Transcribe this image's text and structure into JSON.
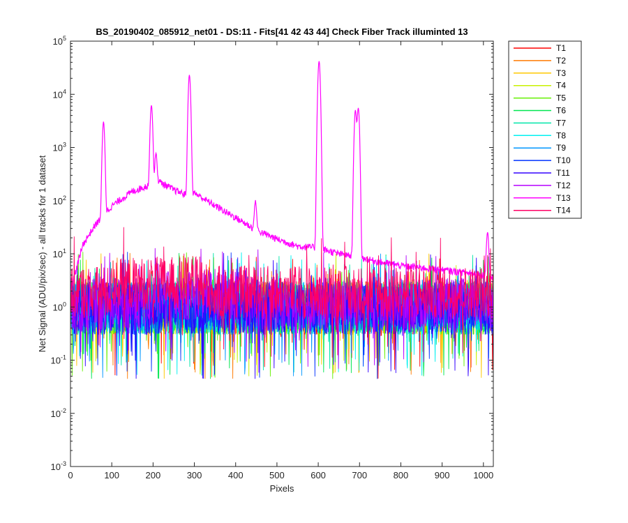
{
  "chart_data": {
    "type": "line",
    "title": "BS_20190402_085912_net01 - DS:11 - Fits[41  42  43  44]   Check Fiber     Track illuminted 13",
    "xlabel": "Pixels",
    "ylabel": "Net Signal (ADU/pix/sec) - all tracks for 1 dataset",
    "xlim": [
      0,
      1024
    ],
    "ylim": [
      0.001,
      100000
    ],
    "yscale": "log",
    "grid": false,
    "legend_position": "outside-top-right",
    "x_ticks": [
      0,
      100,
      200,
      300,
      400,
      500,
      600,
      700,
      800,
      900,
      1000
    ],
    "y_ticks": [
      {
        "base": "10",
        "exp": "-3"
      },
      {
        "base": "10",
        "exp": "-2"
      },
      {
        "base": "10",
        "exp": "-1"
      },
      {
        "base": "10",
        "exp": "0"
      },
      {
        "base": "10",
        "exp": "1"
      },
      {
        "base": "10",
        "exp": "2"
      },
      {
        "base": "10",
        "exp": "3"
      },
      {
        "base": "10",
        "exp": "4"
      },
      {
        "base": "10",
        "exp": "5"
      }
    ],
    "illuminated_track": "T13",
    "illuminated_baseline": [
      [
        0,
        2.0
      ],
      [
        30,
        15
      ],
      [
        60,
        35
      ],
      [
        100,
        80
      ],
      [
        150,
        150
      ],
      [
        200,
        210
      ],
      [
        215,
        230
      ],
      [
        250,
        160
      ],
      [
        280,
        130
      ],
      [
        300,
        140
      ],
      [
        340,
        90
      ],
      [
        400,
        48
      ],
      [
        450,
        28
      ],
      [
        500,
        19
      ],
      [
        550,
        14
      ],
      [
        600,
        13
      ],
      [
        650,
        10
      ],
      [
        700,
        8.5
      ],
      [
        750,
        7
      ],
      [
        800,
        6
      ],
      [
        850,
        5.5
      ],
      [
        900,
        5
      ],
      [
        950,
        4.5
      ],
      [
        1000,
        4
      ],
      [
        1024,
        3.5
      ]
    ],
    "illuminated_peaks": [
      {
        "x": 80,
        "y": 3000
      },
      {
        "x": 196,
        "y": 6000
      },
      {
        "x": 207,
        "y": 550
      },
      {
        "x": 288,
        "y": 23000
      },
      {
        "x": 448,
        "y": 70
      },
      {
        "x": 602,
        "y": 42000
      },
      {
        "x": 690,
        "y": 5000
      },
      {
        "x": 697,
        "y": 5500
      },
      {
        "x": 1010,
        "y": 22
      }
    ],
    "background_level": 1.2,
    "series": [
      {
        "name": "T1",
        "color": "#ff0000"
      },
      {
        "name": "T2",
        "color": "#ff7a00"
      },
      {
        "name": "T3",
        "color": "#ffc800"
      },
      {
        "name": "T4",
        "color": "#c8f000"
      },
      {
        "name": "T5",
        "color": "#64f000"
      },
      {
        "name": "T6",
        "color": "#00e650"
      },
      {
        "name": "T7",
        "color": "#00e6aa"
      },
      {
        "name": "T8",
        "color": "#00f0f0"
      },
      {
        "name": "T9",
        "color": "#0096ff"
      },
      {
        "name": "T10",
        "color": "#0032ff"
      },
      {
        "name": "T11",
        "color": "#3200ff"
      },
      {
        "name": "T12",
        "color": "#b400ff"
      },
      {
        "name": "T13",
        "color": "#ff00ff"
      },
      {
        "name": "T14",
        "color": "#ff0064"
      }
    ]
  }
}
